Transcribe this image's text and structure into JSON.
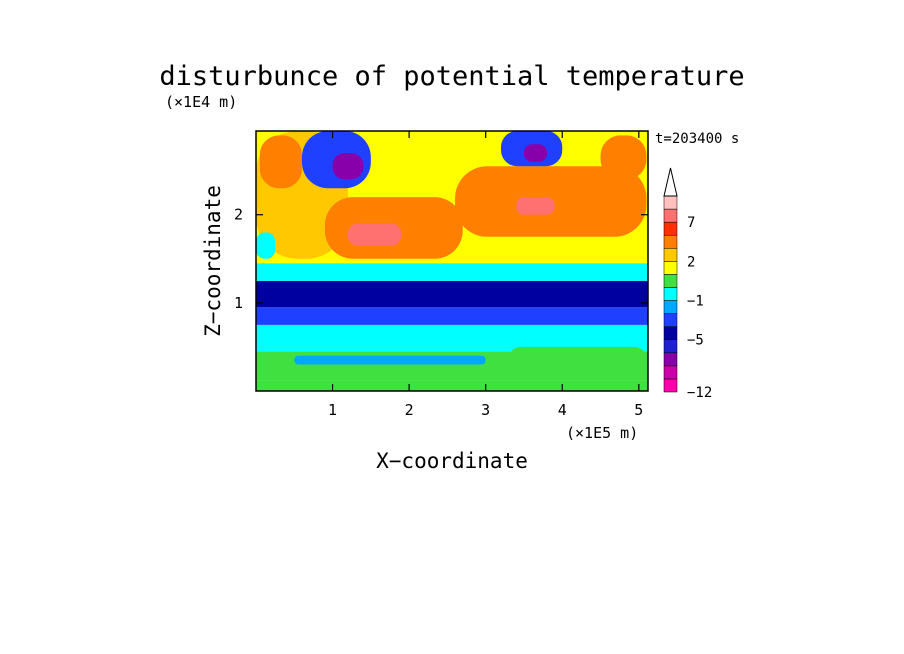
{
  "chart_data": {
    "type": "heatmap",
    "title": "disturbunce of potential temperature",
    "time_label": "t=203400 s",
    "xlabel": "X−coordinate",
    "ylabel": "Z−coordinate",
    "x_unit_label": "(×1E5 m)",
    "y_unit_label": "(×1E4 m)",
    "xlim": [
      0,
      5.12
    ],
    "ylim": [
      0,
      2.95
    ],
    "xticks": [
      1,
      2,
      3,
      4,
      5
    ],
    "xtick_labels": [
      "1",
      "2",
      "3",
      "4",
      "5"
    ],
    "yticks": [
      1,
      2
    ],
    "ytick_labels": [
      "1",
      "2"
    ],
    "colorbar": {
      "levels": [
        -12,
        -11,
        -9,
        -7,
        -5,
        -4,
        -3,
        -1,
        0,
        1,
        2,
        3,
        5,
        7,
        9,
        11
      ],
      "tick_values": [
        -12,
        -5,
        -1,
        2,
        7
      ],
      "tick_labels": [
        "−12",
        "−5",
        "−1",
        "2",
        "7"
      ],
      "colors": [
        "#ff00aa",
        "#cc00aa",
        "#8800aa",
        "#2020d0",
        "#0000a0",
        "#2040ff",
        "#00a8ff",
        "#00ffff",
        "#40e040",
        "#ffff00",
        "#ffc800",
        "#ff8000",
        "#ff3000",
        "#ff7070",
        "#ffc0c0"
      ],
      "extend": "max"
    },
    "regions": [
      {
        "x": [
          0.0,
          5.12
        ],
        "z": [
          0.0,
          0.12
        ],
        "level": 0
      },
      {
        "x": [
          0.0,
          5.12
        ],
        "z": [
          0.12,
          0.45
        ],
        "level": 0.5
      },
      {
        "x": [
          0.0,
          5.12
        ],
        "z": [
          0.45,
          0.75
        ],
        "level": -1
      },
      {
        "x": [
          0.0,
          5.12
        ],
        "z": [
          0.75,
          0.95
        ],
        "level": -4
      },
      {
        "x": [
          0.0,
          5.12
        ],
        "z": [
          0.95,
          1.25
        ],
        "level": -5
      },
      {
        "x": [
          0.0,
          5.12
        ],
        "z": [
          1.25,
          1.45
        ],
        "level": -1
      },
      {
        "x": [
          0.0,
          5.12
        ],
        "z": [
          1.45,
          2.95
        ],
        "level": 1
      },
      {
        "x": [
          0.0,
          1.2
        ],
        "z": [
          1.5,
          2.95
        ],
        "level": 2
      },
      {
        "x": [
          0.9,
          2.7
        ],
        "z": [
          1.5,
          2.2
        ],
        "level": 3
      },
      {
        "x": [
          1.2,
          1.9
        ],
        "z": [
          1.65,
          1.9
        ],
        "level": 7
      },
      {
        "x": [
          0.05,
          0.6
        ],
        "z": [
          2.3,
          2.9
        ],
        "level": 3
      },
      {
        "x": [
          2.6,
          5.1
        ],
        "z": [
          1.75,
          2.55
        ],
        "level": 3
      },
      {
        "x": [
          3.4,
          3.9
        ],
        "z": [
          2.0,
          2.2
        ],
        "level": 7
      },
      {
        "x": [
          4.5,
          5.1
        ],
        "z": [
          2.4,
          2.9
        ],
        "level": 3
      },
      {
        "x": [
          0.6,
          1.5
        ],
        "z": [
          2.3,
          2.95
        ],
        "level": -4
      },
      {
        "x": [
          1.0,
          1.4
        ],
        "z": [
          2.4,
          2.7
        ],
        "level": -9
      },
      {
        "x": [
          3.2,
          4.0
        ],
        "z": [
          2.55,
          2.95
        ],
        "level": -4
      },
      {
        "x": [
          3.5,
          3.8
        ],
        "z": [
          2.6,
          2.8
        ],
        "level": -9
      },
      {
        "x": [
          0.0,
          0.25
        ],
        "z": [
          1.5,
          1.8
        ],
        "level": -1
      },
      {
        "x": [
          0.5,
          3.0
        ],
        "z": [
          0.3,
          0.4
        ],
        "level": -3
      },
      {
        "x": [
          3.3,
          5.1
        ],
        "z": [
          0.2,
          0.5
        ],
        "level": 0
      }
    ]
  }
}
